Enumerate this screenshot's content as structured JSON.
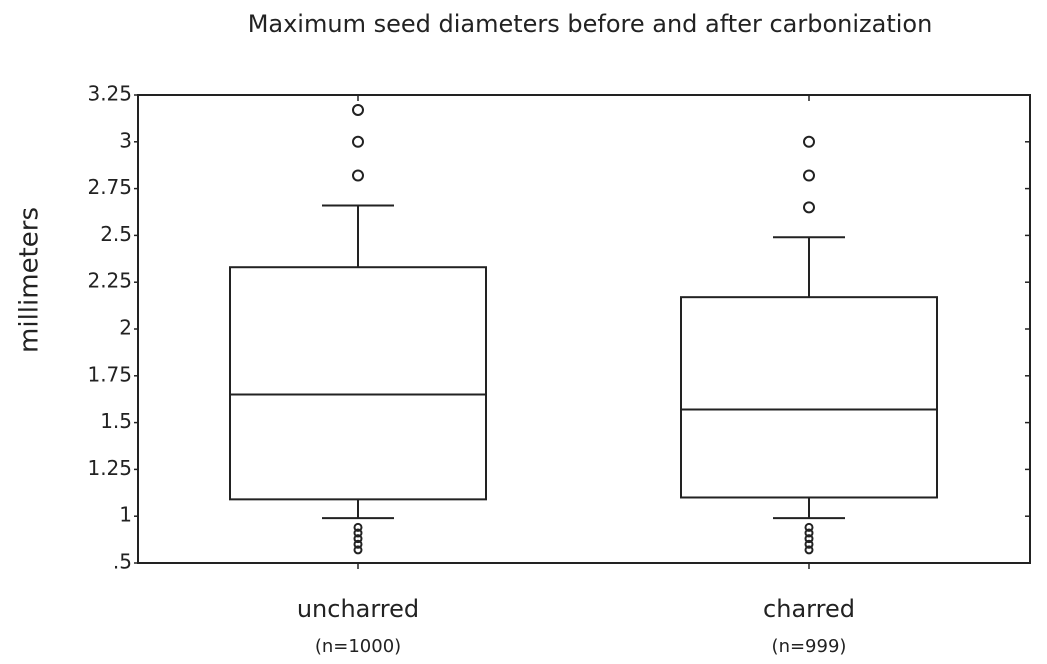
{
  "chart_data": {
    "type": "box",
    "title": "Maximum seed diameters before and after carbonization",
    "y_label": "millimeters",
    "categories": [
      "uncharred",
      "charred"
    ],
    "sublabels": [
      "(n=1000)",
      "(n=999)"
    ],
    "boxes": [
      {
        "whisker_low": 0.99,
        "q1": 1.09,
        "median": 1.65,
        "q3": 2.33,
        "whisker_high": 2.66,
        "outliers": [
          3.17,
          3.0,
          2.82,
          0.94,
          0.91,
          0.88,
          0.85,
          0.82
        ]
      },
      {
        "whisker_low": 0.99,
        "q1": 1.1,
        "median": 1.57,
        "q3": 2.17,
        "whisker_high": 2.49,
        "outliers": [
          3.0,
          2.82,
          2.65,
          0.94,
          0.91,
          0.88,
          0.85,
          0.82
        ]
      }
    ],
    "color": "#222222",
    "ylim": [
      0.75,
      3.25
    ],
    "yticks": [
      {
        "value": 0.75,
        "label": ".5"
      },
      1,
      1.25,
      1.5,
      1.75,
      2,
      2.25,
      2.5,
      2.75,
      3,
      3.25
    ],
    "grid": false
  }
}
